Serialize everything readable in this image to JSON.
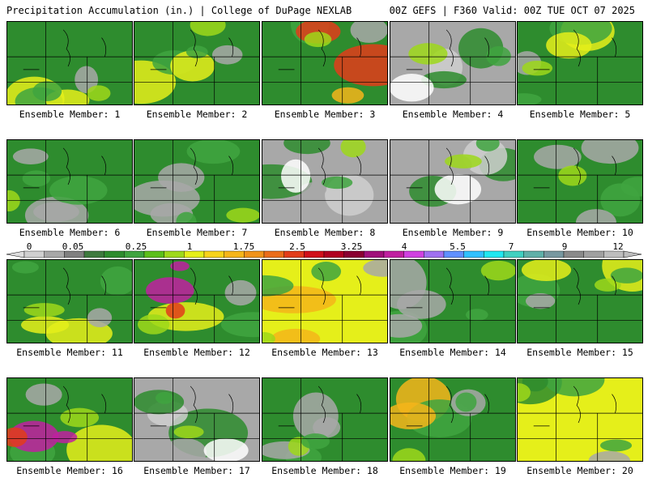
{
  "header": {
    "left": "Precipitation Accumulation (in.) | College of DuPage NEXLAB",
    "right": "00Z GEFS | F360 Valid: 00Z TUE OCT 07 2025"
  },
  "colorbar": {
    "tick_labels": [
      "0",
      "0.05",
      "0.25",
      "1",
      "1.75",
      "2.5",
      "3.25",
      "4",
      "5.5",
      "7",
      "9",
      "12"
    ],
    "colors": [
      "#cfcfcf",
      "#a8a8a8",
      "#808080",
      "#3e7a3e",
      "#2e8c2e",
      "#3fa43f",
      "#5cbf1a",
      "#9ed81a",
      "#e5ef1a",
      "#f7d31a",
      "#f5b51a",
      "#f0931a",
      "#ea6d1a",
      "#e23c1a",
      "#d0101a",
      "#b00020",
      "#8a0030",
      "#a0107a",
      "#c020a0",
      "#d040e0",
      "#a070f0",
      "#6090ff",
      "#30c0ff",
      "#20e8f0",
      "#40d0c0",
      "#60b0a8",
      "#7898a0",
      "#8a8a8a",
      "#a0a0a0",
      "#bdbdbd"
    ]
  },
  "members": [
    {
      "label": "Ensemble Member: 1",
      "dominant": "green",
      "accent": "yellow"
    },
    {
      "label": "Ensemble Member: 2",
      "dominant": "green",
      "accent": "yellow"
    },
    {
      "label": "Ensemble Member: 3",
      "dominant": "green",
      "accent": "red"
    },
    {
      "label": "Ensemble Member: 4",
      "dominant": "gray",
      "accent": "green"
    },
    {
      "label": "Ensemble Member: 5",
      "dominant": "green",
      "accent": "yellow"
    },
    {
      "label": "Ensemble Member: 6",
      "dominant": "green",
      "accent": "gray"
    },
    {
      "label": "Ensemble Member: 7",
      "dominant": "green",
      "accent": "gray"
    },
    {
      "label": "Ensemble Member: 8",
      "dominant": "gray",
      "accent": "green"
    },
    {
      "label": "Ensemble Member: 9",
      "dominant": "gray",
      "accent": "green"
    },
    {
      "label": "Ensemble Member: 10",
      "dominant": "green",
      "accent": "gray"
    },
    {
      "label": "Ensemble Member: 11",
      "dominant": "green",
      "accent": "yellow"
    },
    {
      "label": "Ensemble Member: 12",
      "dominant": "green",
      "accent": "magenta"
    },
    {
      "label": "Ensemble Member: 13",
      "dominant": "yellow",
      "accent": "orange"
    },
    {
      "label": "Ensemble Member: 14",
      "dominant": "green",
      "accent": "gray"
    },
    {
      "label": "Ensemble Member: 15",
      "dominant": "green",
      "accent": "yellow"
    },
    {
      "label": "Ensemble Member: 16",
      "dominant": "green",
      "accent": "magenta"
    },
    {
      "label": "Ensemble Member: 17",
      "dominant": "gray",
      "accent": "green"
    },
    {
      "label": "Ensemble Member: 18",
      "dominant": "green",
      "accent": "gray"
    },
    {
      "label": "Ensemble Member: 19",
      "dominant": "green",
      "accent": "orange"
    },
    {
      "label": "Ensemble Member: 20",
      "dominant": "yellow",
      "accent": "green"
    }
  ]
}
